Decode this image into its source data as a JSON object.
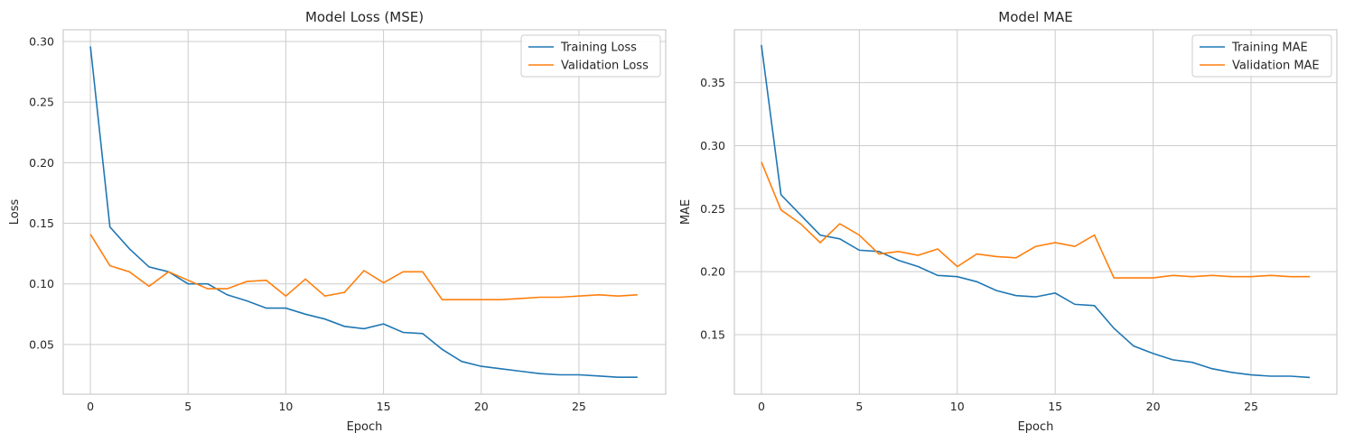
{
  "chart_data": [
    {
      "type": "line",
      "title": "Model Loss (MSE)",
      "xlabel": "Epoch",
      "ylabel": "Loss",
      "xlim": [
        -1.39,
        29.44
      ],
      "ylim": [
        0.009,
        0.3097
      ],
      "xticks": [
        0,
        5,
        10,
        15,
        20,
        25
      ],
      "yticks": [
        0.05,
        0.1,
        0.15,
        0.2,
        0.25,
        0.3
      ],
      "grid": true,
      "legend_position": "top-right",
      "x": [
        0,
        1,
        2,
        3,
        4,
        5,
        6,
        7,
        8,
        9,
        10,
        11,
        12,
        13,
        14,
        15,
        16,
        17,
        18,
        19,
        20,
        21,
        22,
        23,
        24,
        25,
        26,
        27,
        28
      ],
      "series": [
        {
          "name": "Training Loss",
          "color": "#1f77b4",
          "values": [
            0.296,
            0.147,
            0.129,
            0.114,
            0.11,
            0.1,
            0.1,
            0.091,
            0.086,
            0.08,
            0.08,
            0.075,
            0.071,
            0.065,
            0.063,
            0.067,
            0.06,
            0.059,
            0.046,
            0.036,
            0.032,
            0.03,
            0.028,
            0.026,
            0.025,
            0.025,
            0.024,
            0.023,
            0.023
          ]
        },
        {
          "name": "Validation Loss",
          "color": "#ff7f0e",
          "values": [
            0.141,
            0.115,
            0.11,
            0.098,
            0.11,
            0.103,
            0.096,
            0.096,
            0.102,
            0.103,
            0.09,
            0.104,
            0.09,
            0.093,
            0.111,
            0.101,
            0.11,
            0.11,
            0.087,
            0.087,
            0.087,
            0.087,
            0.088,
            0.089,
            0.089,
            0.09,
            0.091,
            0.09,
            0.091
          ]
        }
      ]
    },
    {
      "type": "line",
      "title": "Model MAE",
      "xlabel": "Epoch",
      "ylabel": "MAE",
      "xlim": [
        -1.38,
        29.38
      ],
      "ylim": [
        0.1027,
        0.392
      ],
      "xticks": [
        0,
        5,
        10,
        15,
        20,
        25
      ],
      "yticks": [
        0.15,
        0.2,
        0.25,
        0.3,
        0.35
      ],
      "grid": true,
      "legend_position": "top-right",
      "x": [
        0,
        1,
        2,
        3,
        4,
        5,
        6,
        7,
        8,
        9,
        10,
        11,
        12,
        13,
        14,
        15,
        16,
        17,
        18,
        19,
        20,
        21,
        22,
        23,
        24,
        25,
        26,
        27,
        28
      ],
      "series": [
        {
          "name": "Training MAE",
          "color": "#1f77b4",
          "values": [
            0.38,
            0.261,
            0.245,
            0.229,
            0.226,
            0.217,
            0.216,
            0.209,
            0.204,
            0.197,
            0.196,
            0.192,
            0.185,
            0.181,
            0.18,
            0.183,
            0.174,
            0.173,
            0.155,
            0.141,
            0.135,
            0.13,
            0.128,
            0.123,
            0.12,
            0.118,
            0.117,
            0.117,
            0.116
          ]
        },
        {
          "name": "Validation MAE",
          "color": "#ff7f0e",
          "values": [
            0.287,
            0.249,
            0.238,
            0.223,
            0.238,
            0.229,
            0.214,
            0.216,
            0.213,
            0.218,
            0.204,
            0.214,
            0.212,
            0.211,
            0.22,
            0.223,
            0.22,
            0.229,
            0.195,
            0.195,
            0.195,
            0.197,
            0.196,
            0.197,
            0.196,
            0.196,
            0.197,
            0.196,
            0.196
          ]
        }
      ]
    }
  ]
}
